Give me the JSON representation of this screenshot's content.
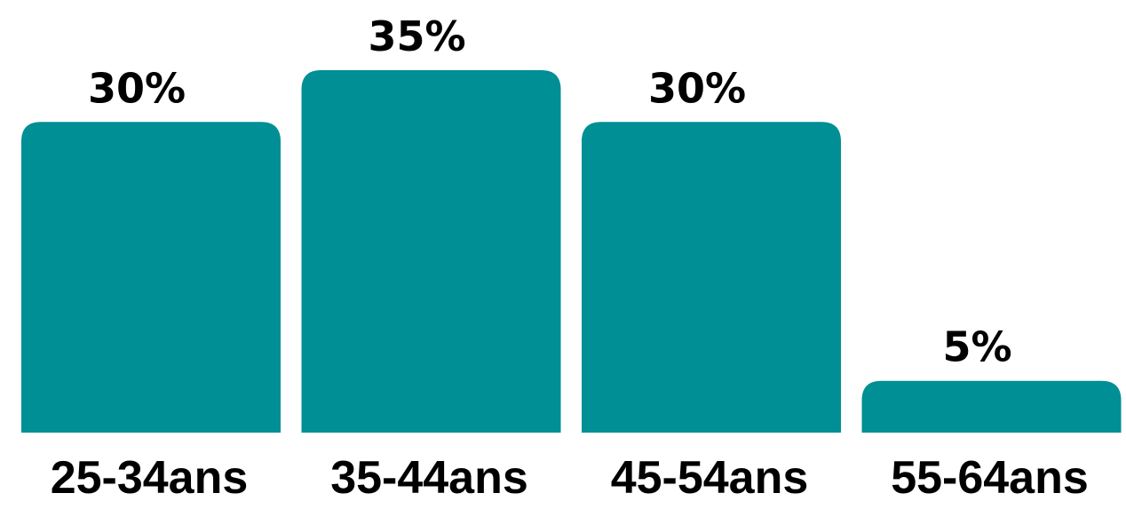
{
  "chart_data": {
    "type": "bar",
    "categories": [
      "25-34ans",
      "35-44ans",
      "45-54ans",
      "55-64ans"
    ],
    "values": [
      30,
      35,
      30,
      5
    ],
    "value_labels": [
      "30%",
      "35%",
      "30%",
      "5%"
    ],
    "ylim": [
      0,
      35
    ],
    "grid": false,
    "colors": {
      "bar": "#008F94",
      "text": "#000000",
      "background": "#FFFFFF"
    }
  }
}
